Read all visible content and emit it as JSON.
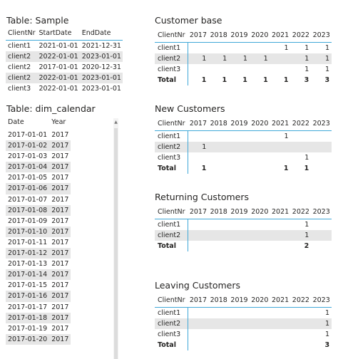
{
  "sample": {
    "title": "Table: Sample",
    "columns": [
      "ClientNr",
      "StartDate",
      "EndDate"
    ],
    "rows": [
      [
        "client1",
        "2021-01-01",
        "2021-12-31"
      ],
      [
        "client2",
        "2022-01-01",
        "2023-01-01"
      ],
      [
        "client2",
        "2017-01-01",
        "2020-12-31"
      ],
      [
        "client2",
        "2022-01-01",
        "2023-01-01"
      ],
      [
        "client3",
        "2022-01-01",
        "2023-01-01"
      ]
    ]
  },
  "calendar": {
    "title": "Table: dim_calendar",
    "columns": [
      "Date",
      "Year"
    ],
    "rows": [
      [
        "2017-01-01",
        "2017"
      ],
      [
        "2017-01-02",
        "2017"
      ],
      [
        "2017-01-03",
        "2017"
      ],
      [
        "2017-01-04",
        "2017"
      ],
      [
        "2017-01-05",
        "2017"
      ],
      [
        "2017-01-06",
        "2017"
      ],
      [
        "2017-01-07",
        "2017"
      ],
      [
        "2017-01-08",
        "2017"
      ],
      [
        "2017-01-09",
        "2017"
      ],
      [
        "2017-01-10",
        "2017"
      ],
      [
        "2017-01-11",
        "2017"
      ],
      [
        "2017-01-12",
        "2017"
      ],
      [
        "2017-01-13",
        "2017"
      ],
      [
        "2017-01-14",
        "2017"
      ],
      [
        "2017-01-15",
        "2017"
      ],
      [
        "2017-01-16",
        "2017"
      ],
      [
        "2017-01-17",
        "2017"
      ],
      [
        "2017-01-18",
        "2017"
      ],
      [
        "2017-01-19",
        "2017"
      ],
      [
        "2017-01-20",
        "2017"
      ]
    ]
  },
  "matrices": [
    {
      "title": "Customer base",
      "columns": [
        "ClientNr",
        "2017",
        "2018",
        "2019",
        "2020",
        "2021",
        "2022",
        "2023"
      ],
      "rows": [
        [
          "client1",
          "",
          "",
          "",
          "",
          "1",
          "1",
          "1"
        ],
        [
          "client2",
          "1",
          "1",
          "1",
          "1",
          "",
          "1",
          "1"
        ],
        [
          "client3",
          "",
          "",
          "",
          "",
          "",
          "1",
          "1"
        ]
      ],
      "total": [
        "Total",
        "1",
        "1",
        "1",
        "1",
        "1",
        "3",
        "3"
      ]
    },
    {
      "title": "New Customers",
      "columns": [
        "ClientNr",
        "2017",
        "2018",
        "2019",
        "2020",
        "2021",
        "2022",
        "2023"
      ],
      "rows": [
        [
          "client1",
          "",
          "",
          "",
          "",
          "1",
          "",
          ""
        ],
        [
          "client2",
          "1",
          "",
          "",
          "",
          "",
          "",
          ""
        ],
        [
          "client3",
          "",
          "",
          "",
          "",
          "",
          "1",
          ""
        ]
      ],
      "total": [
        "Total",
        "1",
        "",
        "",
        "",
        "1",
        "1",
        ""
      ]
    },
    {
      "title": "Returning Customers",
      "columns": [
        "ClientNr",
        "2017",
        "2018",
        "2019",
        "2020",
        "2021",
        "2022",
        "2023"
      ],
      "rows": [
        [
          "client1",
          "",
          "",
          "",
          "",
          "",
          "1",
          ""
        ],
        [
          "client2",
          "",
          "",
          "",
          "",
          "",
          "1",
          ""
        ]
      ],
      "total": [
        "Total",
        "",
        "",
        "",
        "",
        "",
        "2",
        ""
      ]
    },
    {
      "title": "Leaving Customers",
      "columns": [
        "ClientNr",
        "2017",
        "2018",
        "2019",
        "2020",
        "2021",
        "2022",
        "2023"
      ],
      "rows": [
        [
          "client1",
          "",
          "",
          "",
          "",
          "",
          "",
          "1"
        ],
        [
          "client2",
          "",
          "",
          "",
          "",
          "",
          "",
          "1"
        ],
        [
          "client3",
          "",
          "",
          "",
          "",
          "",
          "",
          "1"
        ]
      ],
      "total": [
        "Total",
        "",
        "",
        "",
        "",
        "",
        "",
        "3"
      ]
    }
  ],
  "colors": {
    "accent": "#40a8d8",
    "alt_row": "#e6e6e6",
    "text": "#252423"
  }
}
